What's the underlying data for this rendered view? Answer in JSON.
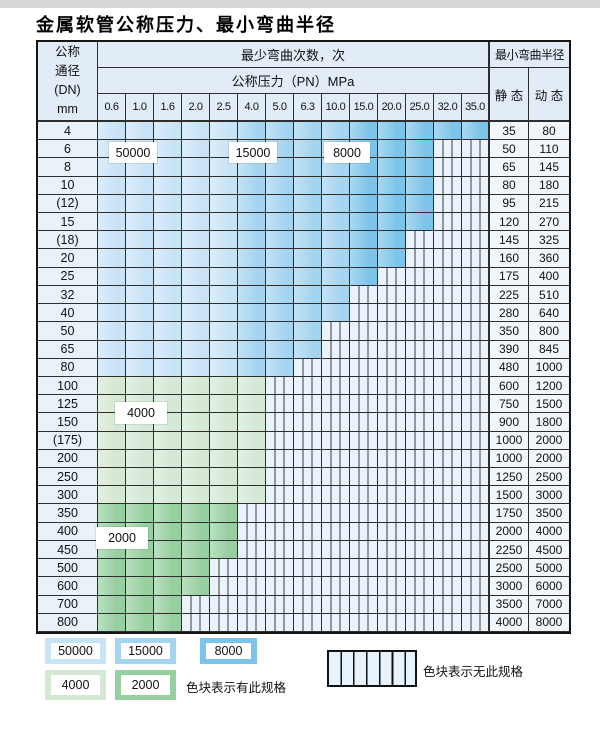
{
  "title": "金属软管公称压力、最小弯曲半径",
  "table": {
    "corner_lines": [
      "公称",
      "通径",
      "(DN)",
      "mm"
    ],
    "bend_cycles_header": "最少弯曲次数，次",
    "pressure_header": "公称压力（PN）MPa",
    "radius_header": "最小弯曲半径",
    "static_header": "静 态",
    "dynamic_header": "动 态",
    "pressure_columns": [
      "0.6",
      "1.0",
      "1.6",
      "2.0",
      "2.5",
      "4.0",
      "5.0",
      "6.3",
      "10.0",
      "15.0",
      "20.0",
      "25.0",
      "32.0",
      "35.0"
    ],
    "rows": [
      {
        "dn": "4",
        "colored": 14,
        "zone": "blue",
        "static": "35",
        "dynamic": "80"
      },
      {
        "dn": "6",
        "colored": 12,
        "zone": "blue",
        "static": "50",
        "dynamic": "110"
      },
      {
        "dn": "8",
        "colored": 12,
        "zone": "blue",
        "static": "65",
        "dynamic": "145"
      },
      {
        "dn": "10",
        "colored": 12,
        "zone": "blue",
        "static": "80",
        "dynamic": "180"
      },
      {
        "dn": "(12)",
        "colored": 12,
        "zone": "blue",
        "static": "95",
        "dynamic": "215"
      },
      {
        "dn": "15",
        "colored": 12,
        "zone": "blue",
        "static": "120",
        "dynamic": "270"
      },
      {
        "dn": "(18)",
        "colored": 11,
        "zone": "blue",
        "static": "145",
        "dynamic": "325"
      },
      {
        "dn": "20",
        "colored": 11,
        "zone": "blue",
        "static": "160",
        "dynamic": "360"
      },
      {
        "dn": "25",
        "colored": 10,
        "zone": "blue",
        "static": "175",
        "dynamic": "400"
      },
      {
        "dn": "32",
        "colored": 9,
        "zone": "blue",
        "static": "225",
        "dynamic": "510"
      },
      {
        "dn": "40",
        "colored": 9,
        "zone": "blue",
        "static": "280",
        "dynamic": "640"
      },
      {
        "dn": "50",
        "colored": 8,
        "zone": "blue",
        "static": "350",
        "dynamic": "800"
      },
      {
        "dn": "65",
        "colored": 8,
        "zone": "blue",
        "static": "390",
        "dynamic": "845"
      },
      {
        "dn": "80",
        "colored": 7,
        "zone": "blue",
        "static": "480",
        "dynamic": "1000"
      },
      {
        "dn": "100",
        "colored": 6,
        "zone": "green_light",
        "static": "600",
        "dynamic": "1200"
      },
      {
        "dn": "125",
        "colored": 6,
        "zone": "green_light",
        "static": "750",
        "dynamic": "1500"
      },
      {
        "dn": "150",
        "colored": 6,
        "zone": "green_light",
        "static": "900",
        "dynamic": "1800"
      },
      {
        "dn": "(175)",
        "colored": 6,
        "zone": "green_light",
        "static": "1000",
        "dynamic": "2000"
      },
      {
        "dn": "200",
        "colored": 6,
        "zone": "green_light",
        "static": "1000",
        "dynamic": "2000"
      },
      {
        "dn": "250",
        "colored": 6,
        "zone": "green_light",
        "static": "1250",
        "dynamic": "2500"
      },
      {
        "dn": "300",
        "colored": 6,
        "zone": "green_light",
        "static": "1500",
        "dynamic": "3000"
      },
      {
        "dn": "350",
        "colored": 5,
        "zone": "green_dark",
        "static": "1750",
        "dynamic": "3500"
      },
      {
        "dn": "400",
        "colored": 5,
        "zone": "green_dark",
        "static": "2000",
        "dynamic": "4000"
      },
      {
        "dn": "450",
        "colored": 5,
        "zone": "green_dark",
        "static": "2250",
        "dynamic": "4500"
      },
      {
        "dn": "500",
        "colored": 4,
        "zone": "green_dark",
        "static": "2500",
        "dynamic": "5000"
      },
      {
        "dn": "600",
        "colored": 4,
        "zone": "green_dark",
        "static": "3000",
        "dynamic": "6000"
      },
      {
        "dn": "700",
        "colored": 3,
        "zone": "green_dark",
        "static": "3500",
        "dynamic": "7000"
      },
      {
        "dn": "800",
        "colored": 3,
        "zone": "green_dark",
        "static": "4000",
        "dynamic": "8000"
      }
    ]
  },
  "overlays": {
    "b50000": "50000",
    "b15000": "15000",
    "b8000": "8000",
    "g4000": "4000",
    "g2000": "2000"
  },
  "legend": {
    "items": [
      {
        "value": "50000",
        "color_key": "cycles_50000"
      },
      {
        "value": "15000",
        "color_key": "cycles_15000"
      },
      {
        "value": "8000",
        "color_key": "cycles_8000"
      },
      {
        "value": "4000",
        "color_key": "cycles_4000"
      },
      {
        "value": "2000",
        "color_key": "cycles_2000"
      }
    ],
    "has_spec_text": "色块表示有此规格",
    "no_spec_text": "色块表示无此规格"
  },
  "colors": {
    "cycles_50000": "#c9e3f6",
    "cycles_15000": "#a5d4f0",
    "cycles_8000": "#7cc4e9",
    "cycles_4000": "#d4e8d4",
    "cycles_2000": "#97cfa0",
    "stripe_bg": "#eaf3fb",
    "header_bg": "#e2ecf7",
    "grid_line": "#2e2e2e"
  }
}
